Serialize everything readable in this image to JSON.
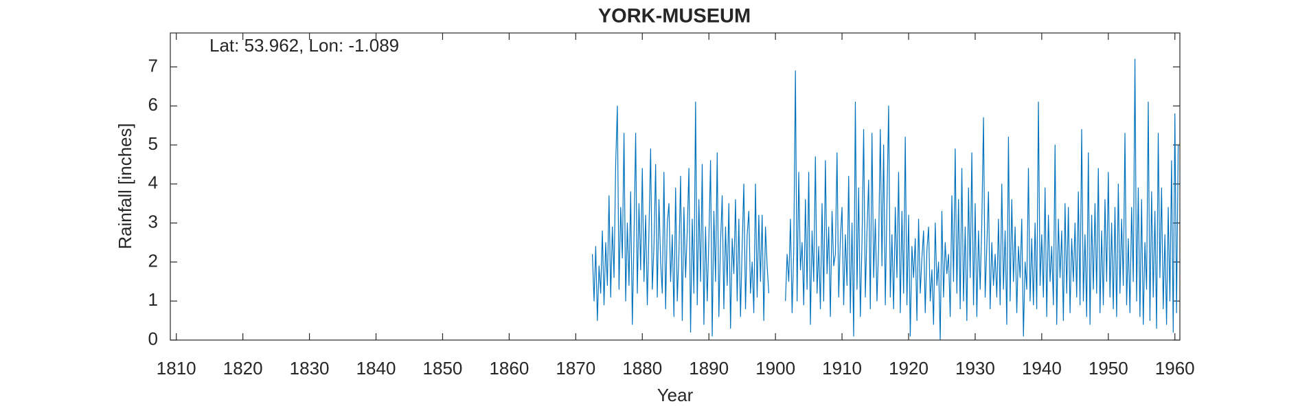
{
  "chart_data": {
    "type": "line",
    "title": "YORK-MUSEUM",
    "annotation": "Lat: 53.962, Lon: -1.089",
    "xlabel": "Year",
    "ylabel": "Rainfall [inches]",
    "color": "#0072bd",
    "xlim": [
      1809.1,
      1960.75
    ],
    "ylim": [
      0,
      7.87
    ],
    "xticks": [
      1810,
      1820,
      1830,
      1840,
      1850,
      1860,
      1870,
      1880,
      1890,
      1900,
      1910,
      1920,
      1930,
      1940,
      1950,
      1960
    ],
    "yticks": [
      0,
      1,
      2,
      3,
      4,
      5,
      6,
      7
    ],
    "grid": false,
    "x": [
      1872.5,
      1872.75,
      1873,
      1873.25,
      1873.5,
      1873.75,
      1874,
      1874.25,
      1874.5,
      1874.75,
      1875,
      1875.25,
      1875.5,
      1875.75,
      1876,
      1876.25,
      1876.5,
      1876.75,
      1877,
      1877.25,
      1877.5,
      1877.75,
      1878,
      1878.25,
      1878.5,
      1878.75,
      1879,
      1879.25,
      1879.5,
      1879.75,
      1880,
      1880.25,
      1880.5,
      1880.75,
      1881,
      1881.25,
      1881.5,
      1881.75,
      1882,
      1882.25,
      1882.5,
      1882.75,
      1883,
      1883.25,
      1883.5,
      1883.75,
      1884,
      1884.25,
      1884.5,
      1884.75,
      1885,
      1885.25,
      1885.5,
      1885.75,
      1886,
      1886.25,
      1886.5,
      1886.75,
      1887,
      1887.25,
      1887.5,
      1887.75,
      1888,
      1888.25,
      1888.5,
      1888.75,
      1889,
      1889.25,
      1889.5,
      1889.75,
      1890,
      1890.25,
      1890.5,
      1890.75,
      1891,
      1891.25,
      1891.5,
      1891.75,
      1892,
      1892.25,
      1892.5,
      1892.75,
      1893,
      1893.25,
      1893.5,
      1893.75,
      1894,
      1894.25,
      1894.5,
      1894.75,
      1895,
      1895.25,
      1895.5,
      1895.75,
      1896,
      1896.25,
      1896.5,
      1896.75,
      1897,
      1897.25,
      1897.5,
      1897.75,
      1898,
      1898.25,
      1898.5,
      1898.75,
      1899,
      1900,
      1901.5,
      1901.75,
      1902,
      1902.25,
      1902.5,
      1902.75,
      1903,
      1903.25,
      1903.5,
      1903.75,
      1904,
      1904.25,
      1904.5,
      1904.75,
      1905,
      1905.25,
      1905.5,
      1905.75,
      1906,
      1906.25,
      1906.5,
      1906.75,
      1907,
      1907.25,
      1907.5,
      1907.75,
      1908,
      1908.25,
      1908.5,
      1908.75,
      1909,
      1909.25,
      1909.5,
      1909.75,
      1910,
      1910.25,
      1910.5,
      1910.75,
      1911,
      1911.25,
      1911.5,
      1911.75,
      1912,
      1912.25,
      1912.5,
      1912.75,
      1913,
      1913.25,
      1913.5,
      1913.75,
      1914,
      1914.25,
      1914.5,
      1914.75,
      1915,
      1915.25,
      1915.5,
      1915.75,
      1916,
      1916.25,
      1916.5,
      1916.75,
      1917,
      1917.25,
      1917.5,
      1917.75,
      1918,
      1918.25,
      1918.5,
      1918.75,
      1919,
      1919.25,
      1919.5,
      1919.75,
      1920,
      1920.25,
      1920.5,
      1920.75,
      1921,
      1921.25,
      1921.5,
      1921.75,
      1922,
      1922.25,
      1922.5,
      1922.75,
      1923,
      1923.25,
      1923.5,
      1923.75,
      1924,
      1924.25,
      1924.5,
      1924.75,
      1925,
      1925.25,
      1925.5,
      1925.75,
      1926,
      1926.25,
      1926.5,
      1926.75,
      1927,
      1927.25,
      1927.5,
      1927.75,
      1928,
      1928.25,
      1928.5,
      1928.75,
      1929,
      1929.25,
      1929.5,
      1929.75,
      1930,
      1930.25,
      1930.5,
      1930.75,
      1931,
      1931.25,
      1931.5,
      1931.75,
      1932,
      1932.25,
      1932.5,
      1932.75,
      1933,
      1933.25,
      1933.5,
      1933.75,
      1934,
      1934.25,
      1934.5,
      1934.75,
      1935,
      1935.25,
      1935.5,
      1935.75,
      1936,
      1936.25,
      1936.5,
      1936.75,
      1937,
      1937.25,
      1937.5,
      1937.75,
      1938,
      1938.25,
      1938.5,
      1938.75,
      1939,
      1939.25,
      1939.5,
      1939.75,
      1940,
      1940.25,
      1940.5,
      1940.75,
      1941,
      1941.25,
      1941.5,
      1941.75,
      1942,
      1942.25,
      1942.5,
      1942.75,
      1943,
      1943.25,
      1943.5,
      1943.75,
      1944,
      1944.25,
      1944.5,
      1944.75,
      1945,
      1945.25,
      1945.5,
      1945.75,
      1946,
      1946.25,
      1946.5,
      1946.75,
      1947,
      1947.25,
      1947.5,
      1947.75,
      1948,
      1948.25,
      1948.5,
      1948.75,
      1949,
      1949.25,
      1949.5,
      1949.75,
      1950,
      1950.25,
      1950.5,
      1950.75,
      1951,
      1951.25,
      1951.5,
      1951.75,
      1952,
      1952.25,
      1952.5,
      1952.75,
      1953,
      1953.25,
      1953.5,
      1953.75,
      1954,
      1954.25,
      1954.5,
      1954.75,
      1955,
      1955.25,
      1955.5,
      1955.75,
      1956,
      1956.25,
      1956.5,
      1956.75,
      1957,
      1957.25,
      1957.5,
      1957.75,
      1958,
      1958.25,
      1958.5,
      1958.75,
      1959,
      1959.25,
      1959.5,
      1959.75,
      1960,
      1960.25,
      1960.5
    ],
    "values": [
      2.2,
      1.0,
      2.4,
      0.5,
      1.9,
      1.2,
      2.8,
      0.9,
      2.5,
      1.4,
      3.7,
      1.1,
      2.9,
      1.6,
      4.5,
      6.0,
      1.3,
      3.4,
      2.1,
      5.3,
      1.0,
      3.0,
      1.4,
      3.8,
      0.4,
      2.6,
      5.3,
      1.2,
      3.5,
      1.8,
      4.4,
      1.5,
      3.2,
      0.9,
      2.8,
      4.9,
      1.3,
      2.4,
      4.5,
      1.1,
      3.6,
      2.0,
      1.2,
      4.3,
      0.8,
      3.0,
      3.5,
      1.5,
      2.7,
      0.6,
      3.9,
      1.0,
      2.2,
      4.2,
      0.5,
      3.4,
      1.6,
      2.8,
      4.4,
      0.2,
      3.1,
      1.2,
      6.1,
      0.9,
      3.6,
      1.5,
      4.5,
      0.4,
      2.9,
      1.0,
      2.6,
      4.6,
      0.1,
      3.3,
      1.5,
      4.8,
      0.6,
      2.5,
      3.7,
      0.8,
      2.9,
      1.4,
      3.5,
      0.3,
      2.6,
      1.7,
      3.6,
      1.0,
      3.1,
      0.6,
      2.4,
      4.0,
      0.8,
      2.7,
      3.3,
      1.2,
      2.0,
      0.7,
      4.0,
      1.1,
      3.2,
      1.5,
      3.2,
      0.5,
      2.9,
      1.9,
      1.2,
      null,
      1.0,
      2.2,
      1.5,
      3.1,
      0.7,
      2.3,
      6.9,
      1.0,
      4.3,
      1.8,
      2.5,
      0.9,
      3.6,
      1.3,
      4.3,
      0.4,
      2.8,
      1.5,
      4.7,
      1.2,
      2.4,
      0.8,
      3.5,
      1.0,
      4.6,
      1.7,
      2.9,
      0.6,
      3.3,
      1.9,
      2.2,
      4.8,
      1.1,
      2.6,
      3.4,
      0.9,
      2.7,
      1.4,
      4.2,
      0.7,
      3.0,
      0.1,
      6.1,
      1.3,
      3.9,
      0.6,
      2.5,
      5.4,
      1.1,
      2.8,
      4.1,
      0.8,
      5.3,
      1.6,
      3.1,
      1.0,
      2.4,
      5.4,
      1.9,
      5.0,
      0.9,
      3.5,
      6.0,
      1.1,
      2.7,
      0.8,
      3.4,
      1.6,
      4.3,
      0.7,
      3.3,
      1.2,
      5.2,
      0.9,
      3.2,
      0.1,
      2.4,
      1.6,
      2.6,
      0.5,
      3.1,
      1.2,
      2.1,
      2.8,
      0.7,
      2.3,
      2.9,
      1.0,
      1.8,
      0.4,
      3.0,
      1.4,
      2.0,
      0.0,
      3.3,
      1.1,
      2.5,
      1.7,
      2.2,
      0.6,
      3.7,
      1.5,
      4.9,
      1.2,
      3.6,
      0.8,
      4.4,
      1.0,
      2.9,
      0.5,
      3.9,
      1.6,
      4.8,
      0.9,
      3.5,
      0.6,
      2.8,
      1.3,
      3.0,
      5.7,
      1.1,
      2.4,
      3.8,
      0.8,
      2.5,
      1.4,
      2.2,
      1.1,
      3.1,
      0.9,
      4.0,
      1.3,
      2.8,
      0.4,
      5.2,
      1.0,
      3.6,
      1.5,
      2.9,
      0.7,
      2.4,
      1.6,
      3.1,
      0.1,
      2.0,
      1.3,
      4.4,
      1.0,
      2.6,
      0.9,
      3.0,
      0.8,
      6.1,
      1.4,
      2.7,
      1.1,
      3.9,
      0.6,
      3.2,
      1.5,
      2.4,
      0.9,
      5.0,
      0.4,
      3.1,
      1.6,
      2.8,
      0.5,
      3.5,
      1.2,
      3.4,
      0.7,
      2.6,
      1.5,
      3.0,
      1.1,
      3.8,
      0.9,
      5.4,
      1.0,
      2.7,
      0.6,
      4.8,
      0.4,
      3.2,
      1.3,
      3.5,
      1.2,
      4.4,
      0.7,
      2.8,
      0.9,
      3.6,
      1.5,
      4.3,
      1.1,
      3.0,
      0.8,
      3.4,
      0.6,
      4.0,
      1.2,
      3.1,
      1.4,
      5.3,
      0.9,
      2.6,
      0.7,
      3.4,
      1.5,
      7.2,
      1.0,
      3.9,
      0.6,
      3.6,
      0.4,
      2.5,
      1.3,
      6.1,
      0.5,
      3.8,
      1.1,
      3.3,
      0.3,
      5.3,
      1.6,
      3.9,
      0.8,
      2.7,
      0.4,
      3.4,
      1.0,
      4.6,
      0.2,
      5.8,
      0.7,
      5.0
    ]
  }
}
